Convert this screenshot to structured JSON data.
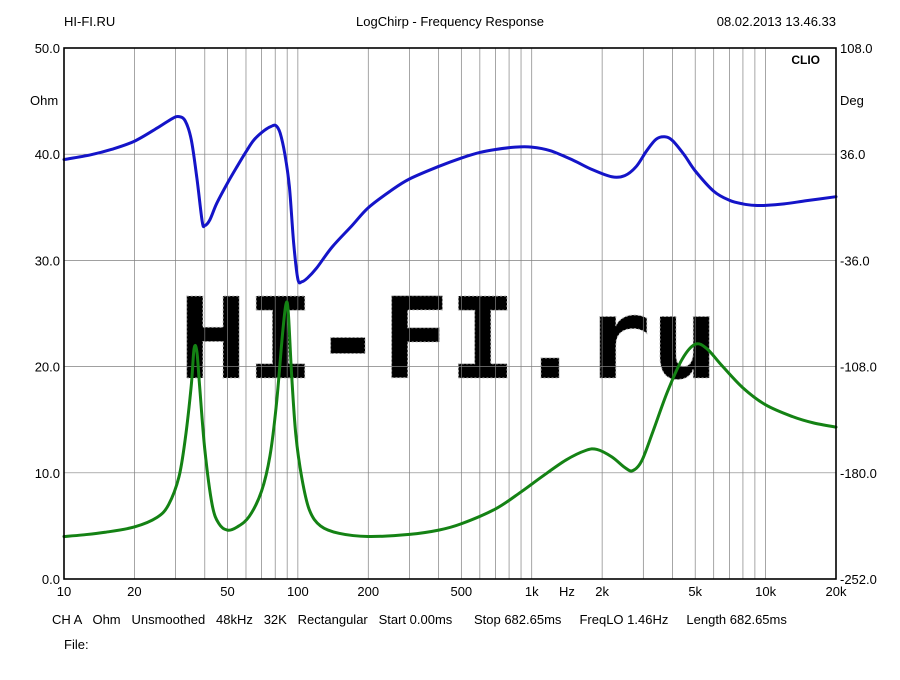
{
  "header": {
    "left": "HI-FI.RU",
    "center": "LogChirp - Frequency Response",
    "right": "08.02.2013 13.46.33"
  },
  "badge": "CLIO",
  "watermark": "HI-FI.ru",
  "footer": {
    "line1": "CH A   Ohm   Unsmoothed   48kHz   32K   Rectangular   Start 0.00ms      Stop 682.65ms     FreqLO 1.46Hz     Length 682.65ms",
    "line2": "File:"
  },
  "chart_data": {
    "type": "line",
    "x_scale": "log",
    "xlim": [
      10,
      20000
    ],
    "xticks": [
      {
        "v": 10,
        "label": "10"
      },
      {
        "v": 20,
        "label": "20"
      },
      {
        "v": 50,
        "label": "50"
      },
      {
        "v": 100,
        "label": "100"
      },
      {
        "v": 200,
        "label": "200"
      },
      {
        "v": 500,
        "label": "500"
      },
      {
        "v": 1000,
        "label": "1k"
      },
      {
        "v": 2000,
        "label": "2k"
      },
      {
        "v": 5000,
        "label": "5k"
      },
      {
        "v": 10000,
        "label": "10k"
      },
      {
        "v": 20000,
        "label": "20k"
      }
    ],
    "xunit": "Hz",
    "y_left": {
      "label": "Ohm",
      "lim": [
        0,
        50
      ],
      "ticks": [
        "0.0",
        "10.0",
        "20.0",
        "30.0",
        "40.0",
        "50.0"
      ]
    },
    "y_right": {
      "label": "Deg",
      "lim": [
        -252,
        108
      ],
      "ticks": [
        "-252.0",
        "-180.0",
        "-108.0",
        "-36.0",
        "36.0",
        "108.0"
      ]
    },
    "grid": true,
    "series": [
      {
        "axis": "right",
        "color": "#1414c8",
        "points": [
          [
            10,
            32.4
          ],
          [
            13,
            35.6
          ],
          [
            16,
            39.3
          ],
          [
            20,
            44.8
          ],
          [
            25,
            53.7
          ],
          [
            29,
            60.1
          ],
          [
            31,
            61.5
          ],
          [
            33,
            58.5
          ],
          [
            35,
            45.9
          ],
          [
            37,
            19.8
          ],
          [
            39,
            -9.7
          ],
          [
            40,
            -12.4
          ],
          [
            42,
            -8.6
          ],
          [
            45,
            2.7
          ],
          [
            50,
            16.4
          ],
          [
            55,
            27.7
          ],
          [
            60,
            37.6
          ],
          [
            65,
            45.8
          ],
          [
            72,
            52.2
          ],
          [
            78,
            55.3
          ],
          [
            81,
            55.1
          ],
          [
            84,
            50.3
          ],
          [
            88,
            35.9
          ],
          [
            92,
            13.9
          ],
          [
            96,
            -24.7
          ],
          [
            100,
            -48.7
          ],
          [
            104,
            -50.5
          ],
          [
            110,
            -47.9
          ],
          [
            120,
            -41.4
          ],
          [
            140,
            -27.0
          ],
          [
            170,
            -12.6
          ],
          [
            200,
            -0.3
          ],
          [
            250,
            11.3
          ],
          [
            300,
            19.2
          ],
          [
            400,
            27.7
          ],
          [
            500,
            33.4
          ],
          [
            600,
            37.2
          ],
          [
            700,
            39.2
          ],
          [
            850,
            40.8
          ],
          [
            1000,
            40.8
          ],
          [
            1200,
            38.4
          ],
          [
            1500,
            32.0
          ],
          [
            1800,
            25.8
          ],
          [
            2200,
            20.7
          ],
          [
            2500,
            21.5
          ],
          [
            2800,
            27.7
          ],
          [
            3100,
            38.3
          ],
          [
            3400,
            46.1
          ],
          [
            3700,
            47.8
          ],
          [
            4000,
            45.2
          ],
          [
            4500,
            35.3
          ],
          [
            5000,
            24.7
          ],
          [
            6000,
            10.9
          ],
          [
            7000,
            4.8
          ],
          [
            8000,
            2.3
          ],
          [
            9000,
            1.3
          ],
          [
            10000,
            1.3
          ],
          [
            12000,
            2.3
          ],
          [
            15000,
            4.5
          ],
          [
            20000,
            7.2
          ]
        ]
      },
      {
        "axis": "left",
        "color": "#148214",
        "points": [
          [
            10,
            4.0
          ],
          [
            12,
            4.15
          ],
          [
            15,
            4.4
          ],
          [
            20,
            4.9
          ],
          [
            25,
            5.8
          ],
          [
            28,
            7.0
          ],
          [
            31,
            9.6
          ],
          [
            33,
            13.2
          ],
          [
            35,
            18.2
          ],
          [
            36,
            21.7
          ],
          [
            37,
            21.4
          ],
          [
            38,
            18.2
          ],
          [
            40,
            12.2
          ],
          [
            43,
            7.0
          ],
          [
            46,
            5.2
          ],
          [
            50,
            4.6
          ],
          [
            55,
            4.9
          ],
          [
            62,
            5.9
          ],
          [
            70,
            8.3
          ],
          [
            76,
            11.6
          ],
          [
            81,
            16.5
          ],
          [
            86,
            23.1
          ],
          [
            89,
            25.9
          ],
          [
            91,
            25.1
          ],
          [
            94,
            19.3
          ],
          [
            98,
            13.6
          ],
          [
            104,
            9.5
          ],
          [
            112,
            6.5
          ],
          [
            125,
            5.0
          ],
          [
            150,
            4.3
          ],
          [
            200,
            4.0
          ],
          [
            300,
            4.2
          ],
          [
            400,
            4.6
          ],
          [
            500,
            5.2
          ],
          [
            700,
            6.6
          ],
          [
            900,
            8.2
          ],
          [
            1100,
            9.6
          ],
          [
            1400,
            11.2
          ],
          [
            1700,
            12.1
          ],
          [
            1900,
            12.2
          ],
          [
            2200,
            11.5
          ],
          [
            2500,
            10.5
          ],
          [
            2700,
            10.2
          ],
          [
            2950,
            11.1
          ],
          [
            3300,
            13.9
          ],
          [
            3800,
            17.6
          ],
          [
            4400,
            20.7
          ],
          [
            5000,
            22.1
          ],
          [
            5600,
            21.7
          ],
          [
            6500,
            20.1
          ],
          [
            8000,
            18.0
          ],
          [
            10000,
            16.4
          ],
          [
            13000,
            15.3
          ],
          [
            16000,
            14.7
          ],
          [
            20000,
            14.3
          ]
        ]
      }
    ]
  }
}
